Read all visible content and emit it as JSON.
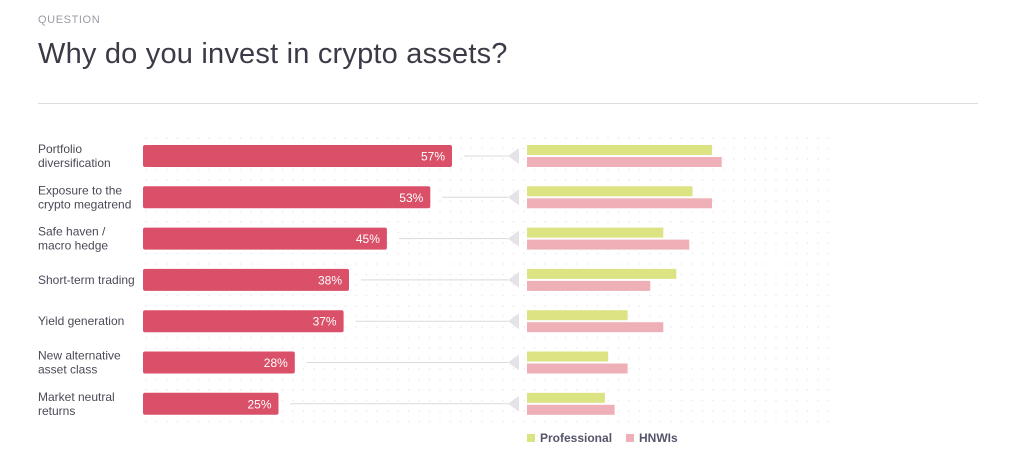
{
  "header": {
    "eyebrow": "QUESTION",
    "title": "Why do you invest in crypto assets?"
  },
  "colors": {
    "primary_bar": "#d95068",
    "professional": "#dce383",
    "hnwis": "#eeb0b6",
    "connector": "#d9d9df",
    "dots": "#ececf1"
  },
  "chart_data": {
    "type": "bar",
    "orientation": "horizontal",
    "categories": [
      [
        "Portfolio",
        "diversification"
      ],
      [
        "Exposure to the",
        "crypto megatrend"
      ],
      [
        "Safe haven /",
        "macro hedge"
      ],
      [
        "Short-term trading"
      ],
      [
        "Yield generation"
      ],
      [
        "New alternative",
        "asset class"
      ],
      [
        "Market neutral",
        "returns"
      ]
    ],
    "total": {
      "values": [
        57,
        53,
        45,
        38,
        37,
        28,
        25
      ],
      "labels": [
        "57%",
        "53%",
        "45%",
        "38%",
        "37%",
        "28%",
        "25%"
      ]
    },
    "series": [
      {
        "name": "Professional",
        "values": [
          57,
          51,
          42,
          46,
          31,
          25,
          24
        ]
      },
      {
        "name": "HNWIs",
        "values": [
          60,
          57,
          50,
          38,
          42,
          31,
          27
        ]
      }
    ],
    "xlim": [
      0,
      100
    ],
    "legend_position": "bottom-right"
  }
}
